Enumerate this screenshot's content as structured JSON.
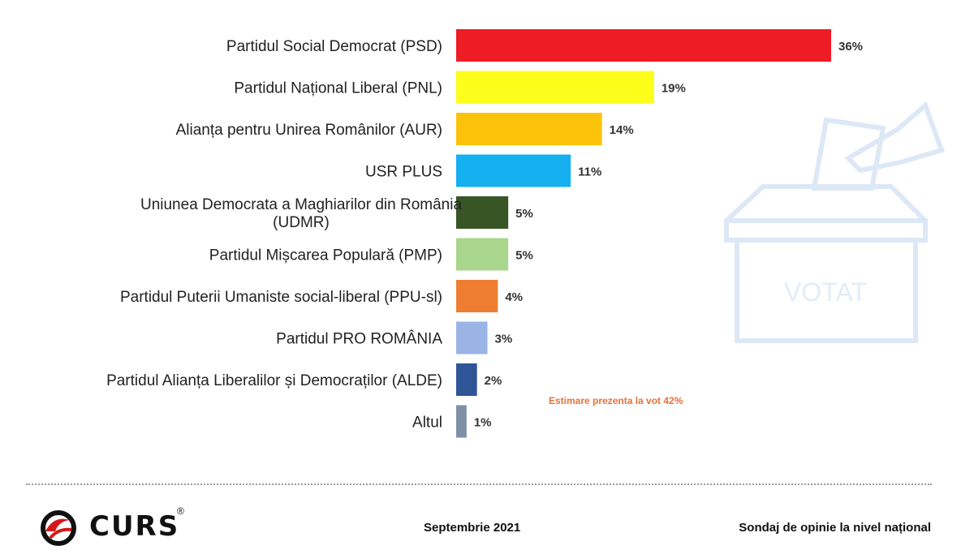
{
  "chart_data": {
    "type": "bar",
    "orientation": "horizontal",
    "categories": [
      "Partidul Social Democrat (PSD)",
      "Partidul Național Liberal (PNL)",
      "Alianța pentru Unirea Românilor (AUR)",
      "USR PLUS",
      "Uniunea Democrata a Maghiarilor din România (UDMR)",
      "Partidul Mișcarea Populară (PMP)",
      "Partidul Puterii Umaniste social-liberal (PPU-sl)",
      "Partidul PRO ROMÂNIA",
      "Partidul Alianța Liberalilor și Democraților (ALDE)",
      "Altul"
    ],
    "label_lines": [
      [
        "Partidul Social Democrat (PSD)"
      ],
      [
        "Partidul Național Liberal (PNL)"
      ],
      [
        "Alianța pentru Unirea Românilor (AUR)"
      ],
      [
        "USR PLUS"
      ],
      [
        "Uniunea Democrata a Maghiarilor din România",
        "(UDMR)"
      ],
      [
        "Partidul Mișcarea Populară (PMP)"
      ],
      [
        "Partidul Puterii Umaniste social-liberal (PPU-sl)"
      ],
      [
        "Partidul PRO ROMÂNIA"
      ],
      [
        "Partidul Alianța Liberalilor și Democraților (ALDE)"
      ],
      [
        "Altul"
      ]
    ],
    "values": [
      36,
      19,
      14,
      11,
      5,
      5,
      4,
      3,
      2,
      1
    ],
    "value_labels": [
      "36%",
      "19%",
      "14%",
      "11%",
      "5%",
      "5%",
      "4%",
      "3%",
      "2%",
      "1%"
    ],
    "colors": [
      "#ee1c25",
      "#fdfd1c",
      "#fdc20a",
      "#14b0ef",
      "#385625",
      "#a8d68d",
      "#ee7d31",
      "#9ab4e6",
      "#2e5596",
      "#7f8fa6"
    ],
    "xlim": [
      0,
      36
    ],
    "grid": false,
    "legend": "none",
    "annotation": "Estimare prezenta la vot 42%",
    "watermark_text": "VOTAT"
  },
  "footer": {
    "brand": "CURS",
    "registered": "®",
    "date": "Septembrie 2021",
    "survey": "Sondaj de opinie la nivel național"
  }
}
